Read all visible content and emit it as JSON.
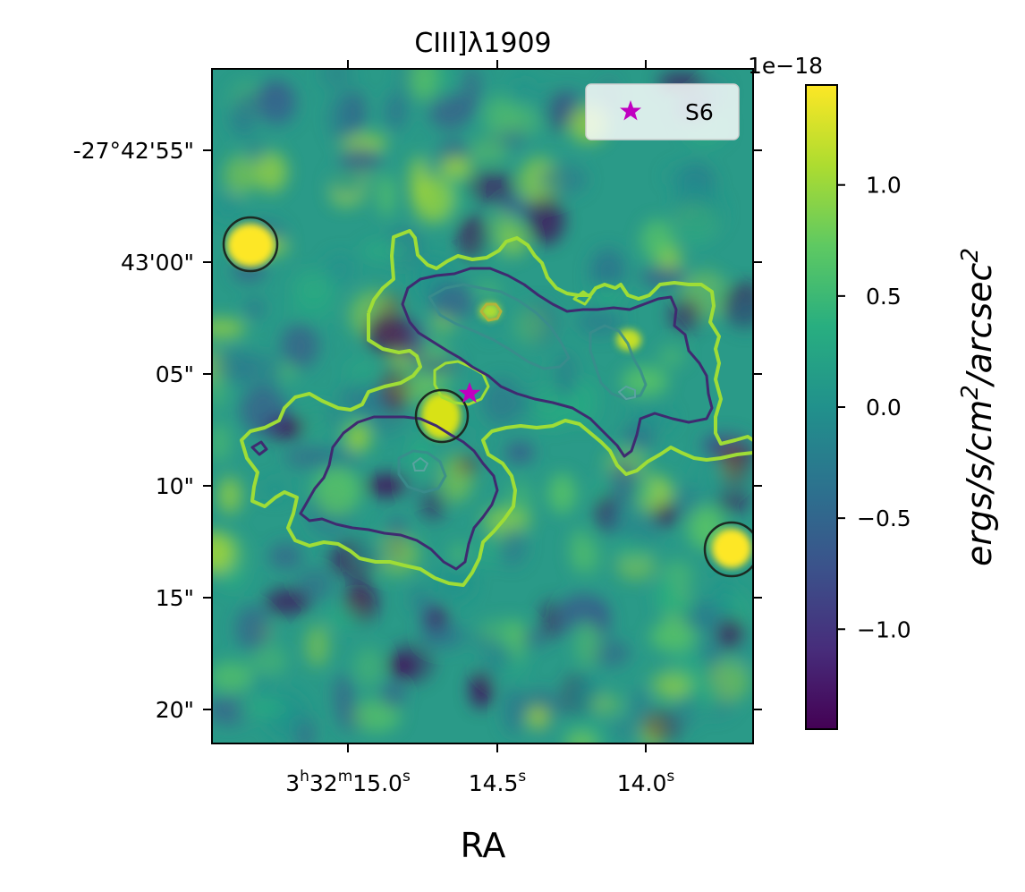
{
  "chart_data": {
    "type": "heatmap",
    "title": "CIII]λ1909",
    "xlabel": "RA",
    "ylabel": "",
    "colormap": "viridis",
    "x_ticks": {
      "bottom": [
        {
          "main": "3",
          "sup1": "h",
          "mid": "32",
          "sup2": "m",
          "tail": "15.0",
          "sup3": "s"
        },
        {
          "main": "14.5",
          "sup1": "s"
        },
        {
          "main": "14.0",
          "sup1": "s"
        }
      ]
    },
    "y_ticks": [
      "-27°42'55\"",
      "43'00\"",
      "05\"",
      "10\"",
      "15\"",
      "20\""
    ],
    "colorbar": {
      "label": "ergs/s/cm²/arcsec²",
      "label_parts": {
        "a": "ergs/s/cm",
        "exp1": "2",
        "b": "/arcsec",
        "exp2": "2"
      },
      "offset_text": "1e−18",
      "range": [
        -1.45,
        1.45
      ],
      "ticks": [
        {
          "value": 1.0,
          "label": "1.0"
        },
        {
          "value": 0.5,
          "label": "0.5"
        },
        {
          "value": 0.0,
          "label": "0.0"
        },
        {
          "value": -0.5,
          "label": "−0.5"
        },
        {
          "value": -1.0,
          "label": "−1.0"
        }
      ]
    },
    "legend": {
      "placement": "top-right",
      "entries": [
        {
          "marker": "star",
          "color": "#c000c0",
          "label": "S6"
        }
      ]
    },
    "markers": [
      {
        "type": "star",
        "label": "S6",
        "color": "#c000c0"
      }
    ],
    "circle_count": 3,
    "contour_levels": 3,
    "contour_colors": [
      "#9fdd36",
      "#3f2a70",
      "#3a8c8c"
    ]
  }
}
